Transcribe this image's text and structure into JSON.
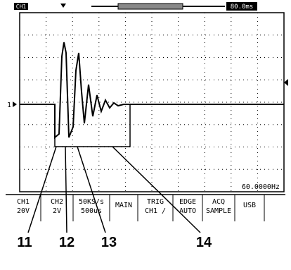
{
  "screen": {
    "top_left": "CH1",
    "top_right": "80.0ms",
    "channel_marker": "1",
    "frequency": "60.0000Hz",
    "menu": [
      {
        "line1": "CH1",
        "line2": "20V"
      },
      {
        "line1": "CH2",
        "line2": "2V"
      },
      {
        "line1": "50KS/s",
        "line2": "500us"
      },
      {
        "line1": "MAIN",
        "line2": null
      },
      {
        "line1": "TRIG",
        "line2": "CH1 /"
      },
      {
        "line1": "EDGE",
        "line2": "AUTO"
      },
      {
        "line1": "ACQ",
        "line2": "SAMPLE"
      },
      {
        "line1": "USB",
        "line2": null
      }
    ]
  },
  "callouts": [
    "11",
    "12",
    "13",
    "14"
  ]
}
